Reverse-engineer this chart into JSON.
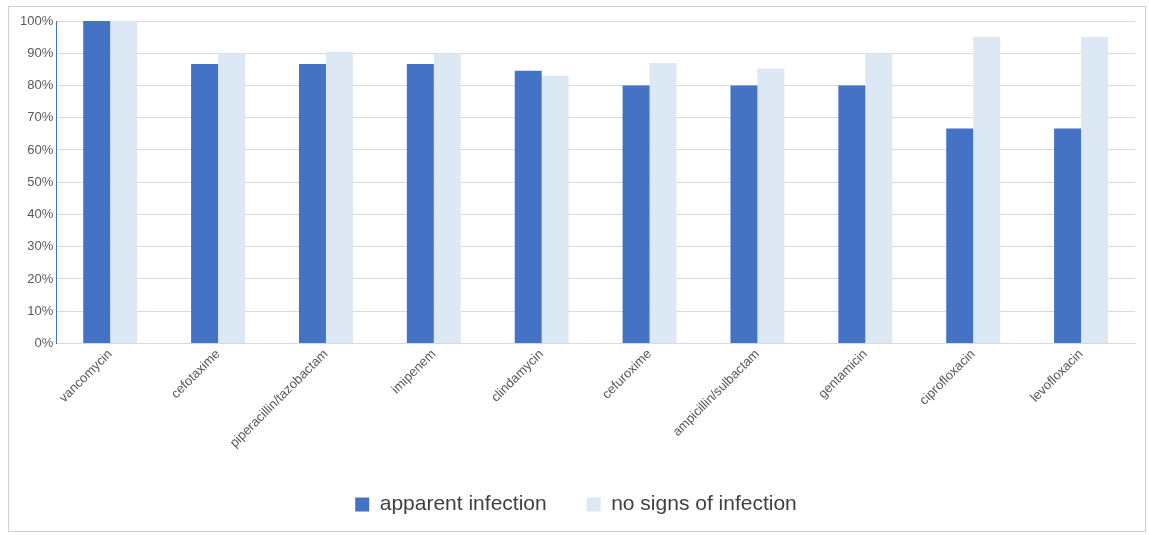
{
  "chart_data": {
    "type": "bar",
    "categories": [
      "vancomycin",
      "cefotaxime",
      "piperacillin/tazobactam",
      "imipenem",
      "clindamycin",
      "cefuroxime",
      "ampicillin/sulbactam",
      "gentamicin",
      "ciprofloxacin",
      "levofloxacin"
    ],
    "series": [
      {
        "name": "apparent infection",
        "color": "#4472c4",
        "values": [
          100,
          86.7,
          86.7,
          86.7,
          84.6,
          80,
          80,
          80,
          66.7,
          66.7
        ]
      },
      {
        "name": "no signs of infection",
        "color": "#dde8f5",
        "values": [
          100,
          90,
          90.5,
          90,
          83,
          87,
          85.3,
          90,
          95,
          95
        ]
      }
    ],
    "ylim": [
      0,
      100
    ],
    "yticks": [
      {
        "value": 0,
        "label": "0%"
      },
      {
        "value": 10,
        "label": "10%"
      },
      {
        "value": 20,
        "label": "20%"
      },
      {
        "value": 30,
        "label": "30%"
      },
      {
        "value": 40,
        "label": "40%"
      },
      {
        "value": 50,
        "label": "50%"
      },
      {
        "value": 60,
        "label": "60%"
      },
      {
        "value": 70,
        "label": "70%"
      },
      {
        "value": 80,
        "label": "80%"
      },
      {
        "value": 90,
        "label": "90%"
      },
      {
        "value": 100,
        "label": "100%"
      }
    ],
    "grid": "y",
    "legend": "bottom"
  }
}
